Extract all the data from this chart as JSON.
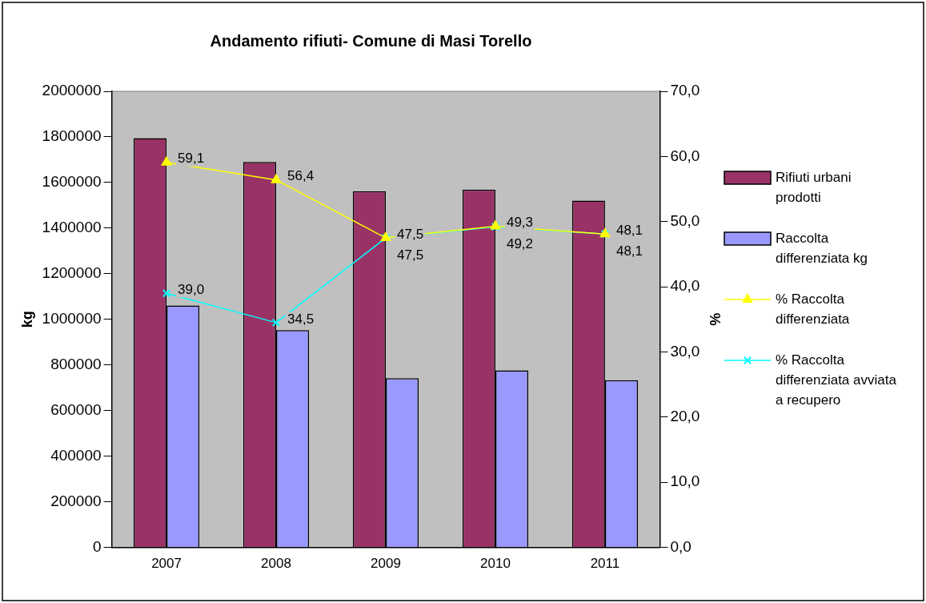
{
  "chart_data": {
    "type": "bar",
    "title": "Andamento rifiuti- Comune di Masi Torello",
    "ylabel": "kg",
    "y2label": "%",
    "categories": [
      "2007",
      "2008",
      "2009",
      "2010",
      "2011"
    ],
    "series": [
      {
        "name": "Rifiuti urbani prodotti",
        "color": "#993366",
        "values": [
          1795000,
          1690000,
          1562000,
          1569000,
          1521000
        ]
      },
      {
        "name": "Raccolta differenziata kg",
        "color": "#9999ff",
        "values": [
          1061000,
          953000,
          742000,
          776000,
          733000
        ]
      },
      {
        "name": "% Raccolta differenziata",
        "type": "line",
        "axis": "y2",
        "marker": "triangle",
        "color": "#ffff00",
        "values": [
          59.1,
          56.4,
          47.5,
          49.3,
          48.1
        ],
        "value_labels": [
          "59,1",
          "56,4",
          "47,5",
          "49,3",
          "48,1"
        ]
      },
      {
        "name": "% Raccolta differenziata avviata a recupero",
        "type": "line",
        "axis": "y2",
        "marker": "cross",
        "color": "#00ffff",
        "values": [
          39.0,
          34.5,
          47.5,
          49.2,
          48.1
        ],
        "value_labels": [
          "39,0",
          "34,5",
          "47,5",
          "49,2",
          "48,1"
        ]
      }
    ],
    "ylim": [
      0,
      2000000
    ],
    "yticks": [
      0,
      200000,
      400000,
      600000,
      800000,
      1000000,
      1200000,
      1400000,
      1600000,
      1800000,
      2000000
    ],
    "y2lim": [
      0,
      70
    ],
    "y2ticks": [
      {
        "value": 0,
        "label": "0,0"
      },
      {
        "value": 10,
        "label": "10,0"
      },
      {
        "value": 20,
        "label": "20,0"
      },
      {
        "value": 30,
        "label": "30,0"
      },
      {
        "value": 40,
        "label": "40,0"
      },
      {
        "value": 50,
        "label": "50,0"
      },
      {
        "value": 60,
        "label": "60,0"
      },
      {
        "value": 70,
        "label": "70,0"
      }
    ],
    "grid": false,
    "legend": "right"
  }
}
